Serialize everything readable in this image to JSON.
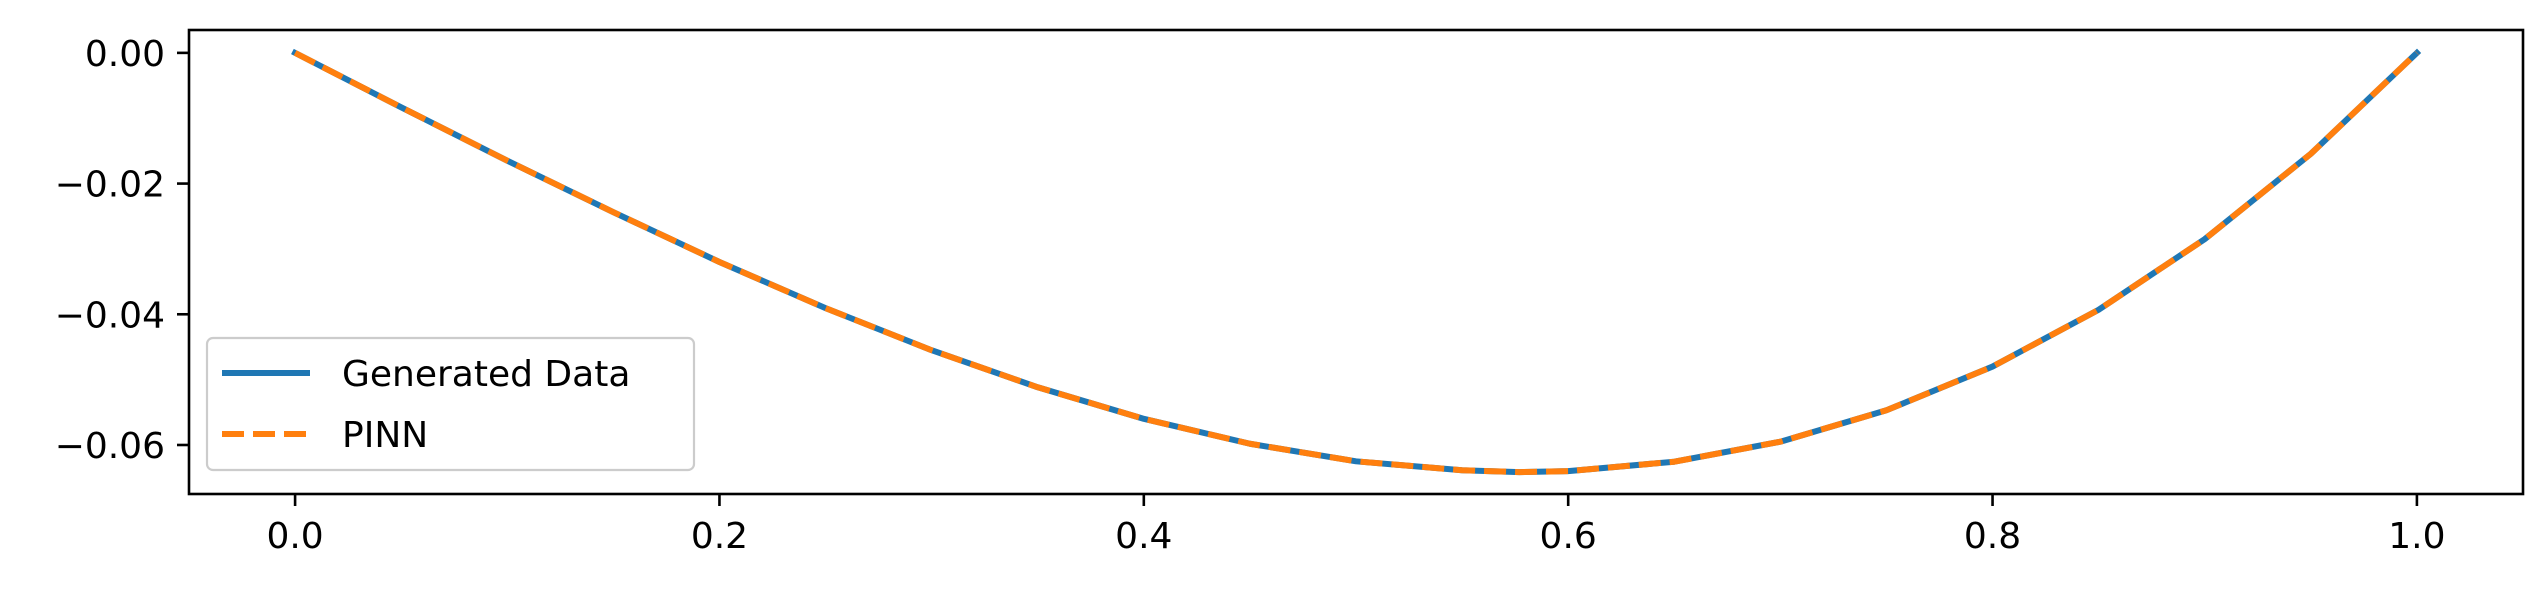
{
  "chart_data": {
    "type": "line",
    "title": "",
    "xlabel": "",
    "ylabel": "",
    "xlim": [
      -0.05,
      1.05
    ],
    "ylim": [
      -0.0675,
      0.0035
    ],
    "xticks": [
      0.0,
      0.2,
      0.4,
      0.6,
      0.8,
      1.0
    ],
    "xtick_labels": [
      "0.0",
      "0.2",
      "0.4",
      "0.6",
      "0.8",
      "1.0"
    ],
    "yticks": [
      0.0,
      -0.02,
      -0.04,
      -0.06
    ],
    "ytick_labels": [
      "0.00",
      "−0.02",
      "−0.04",
      "−0.06"
    ],
    "grid": false,
    "legend_position": "lower-left",
    "series": [
      {
        "name": "Generated Data",
        "color": "#1f77b4",
        "style": "solid",
        "x": [
          0.0,
          0.05,
          0.1,
          0.15,
          0.2,
          0.25,
          0.3,
          0.35,
          0.4,
          0.45,
          0.5,
          0.55,
          0.577,
          0.6,
          0.65,
          0.7,
          0.75,
          0.8,
          0.85,
          0.9,
          0.95,
          1.0
        ],
        "y": [
          0.0,
          -0.00833,
          -0.0165,
          -0.02437,
          -0.032,
          -0.03906,
          -0.0455,
          -0.05117,
          -0.056,
          -0.05981,
          -0.0625,
          -0.06386,
          -0.06415,
          -0.064,
          -0.06256,
          -0.0595,
          -0.05469,
          -0.048,
          -0.03931,
          -0.0285,
          -0.01544,
          0.0
        ]
      },
      {
        "name": "PINN",
        "color": "#ff7f0e",
        "style": "dashed",
        "x": [
          0.0,
          0.05,
          0.1,
          0.15,
          0.2,
          0.25,
          0.3,
          0.35,
          0.4,
          0.45,
          0.5,
          0.55,
          0.577,
          0.6,
          0.65,
          0.7,
          0.75,
          0.8,
          0.85,
          0.9,
          0.95,
          1.0
        ],
        "y": [
          0.0,
          -0.00833,
          -0.0165,
          -0.02437,
          -0.032,
          -0.03906,
          -0.0455,
          -0.05117,
          -0.056,
          -0.05981,
          -0.0625,
          -0.06386,
          -0.06415,
          -0.064,
          -0.06256,
          -0.0595,
          -0.05469,
          -0.048,
          -0.03931,
          -0.0285,
          -0.01544,
          0.0
        ]
      }
    ]
  }
}
